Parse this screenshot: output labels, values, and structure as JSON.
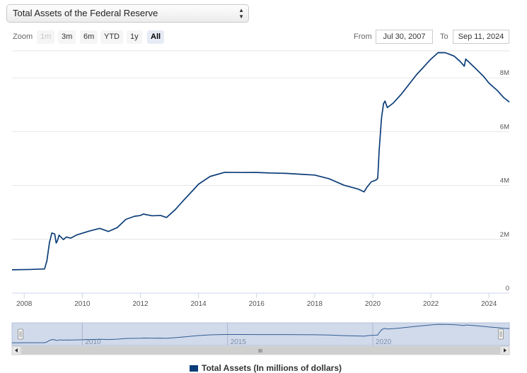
{
  "selector": {
    "value": "Total Assets of the Federal Reserve"
  },
  "zoom": {
    "label": "Zoom",
    "buttons": [
      {
        "label": "1m",
        "state": "disabled"
      },
      {
        "label": "3m",
        "state": "normal"
      },
      {
        "label": "6m",
        "state": "normal"
      },
      {
        "label": "YTD",
        "state": "normal"
      },
      {
        "label": "1y",
        "state": "normal"
      },
      {
        "label": "All",
        "state": "active"
      }
    ]
  },
  "range": {
    "from_label": "From",
    "from_value": "Jul 30, 2007",
    "to_label": "To",
    "to_value": "Sep 11, 2024"
  },
  "legend": {
    "label": "Total Assets (In millions of dollars)",
    "color": "#0b3d78"
  },
  "navigator": {
    "scroll_grip": "III"
  },
  "colors": {
    "line": "#0b3d78",
    "grid": "#e6e6e6",
    "navigator_mask": "#c8d3e8"
  },
  "chart_data": {
    "type": "line",
    "title": "",
    "ylabel": "",
    "xlabel": "",
    "xlim": [
      2007.58,
      2024.7
    ],
    "ylim": [
      0,
      9000000
    ],
    "y_ticks": [
      {
        "value": 0,
        "label": "0"
      },
      {
        "value": 2000000,
        "label": "2M"
      },
      {
        "value": 4000000,
        "label": "4M"
      },
      {
        "value": 6000000,
        "label": "6M"
      },
      {
        "value": 8000000,
        "label": "8M"
      }
    ],
    "x_ticks": [
      "2008",
      "2010",
      "2012",
      "2014",
      "2016",
      "2018",
      "2020",
      "2022",
      "2024"
    ],
    "navigator_ticks": [
      "2010",
      "2015",
      "2020"
    ],
    "grid": true,
    "series": [
      {
        "name": "Total Assets (In millions of dollars)",
        "x": [
          2007.58,
          2008.2,
          2008.7,
          2008.78,
          2008.87,
          2008.95,
          2009.05,
          2009.1,
          2009.15,
          2009.2,
          2009.35,
          2009.45,
          2009.6,
          2009.8,
          2010.2,
          2010.6,
          2010.9,
          2011.2,
          2011.5,
          2011.8,
          2012.0,
          2012.1,
          2012.4,
          2012.7,
          2012.9,
          2013.2,
          2013.5,
          2013.8,
          2014.0,
          2014.4,
          2014.9,
          2015.5,
          2016.0,
          2016.5,
          2017.0,
          2017.5,
          2018.0,
          2018.5,
          2019.0,
          2019.5,
          2019.7,
          2019.8,
          2019.95,
          2020.1,
          2020.17,
          2020.22,
          2020.3,
          2020.37,
          2020.42,
          2020.5,
          2020.7,
          2021.0,
          2021.5,
          2022.0,
          2022.25,
          2022.5,
          2022.8,
          2023.0,
          2023.15,
          2023.2,
          2023.5,
          2023.8,
          2024.0,
          2024.3,
          2024.5,
          2024.7
        ],
        "y": [
          870000,
          880000,
          900000,
          1200000,
          1900000,
          2250000,
          2200000,
          1850000,
          1950000,
          2150000,
          2000000,
          2100000,
          2050000,
          2150000,
          2280000,
          2400000,
          2300000,
          2450000,
          2750000,
          2850000,
          2870000,
          2930000,
          2880000,
          2900000,
          2820000,
          3100000,
          3450000,
          3800000,
          4050000,
          4350000,
          4500000,
          4480000,
          4470000,
          4450000,
          4450000,
          4430000,
          4400000,
          4250000,
          4000000,
          3850000,
          3760000,
          3950000,
          4150000,
          4200000,
          4250000,
          5300000,
          6500000,
          7050000,
          7150000,
          6900000,
          7050000,
          7400000,
          8100000,
          8700000,
          8950000,
          8940000,
          8800000,
          8600000,
          8420000,
          8700000,
          8400000,
          8080000,
          7800000,
          7500000,
          7260000,
          7100000
        ]
      }
    ]
  }
}
